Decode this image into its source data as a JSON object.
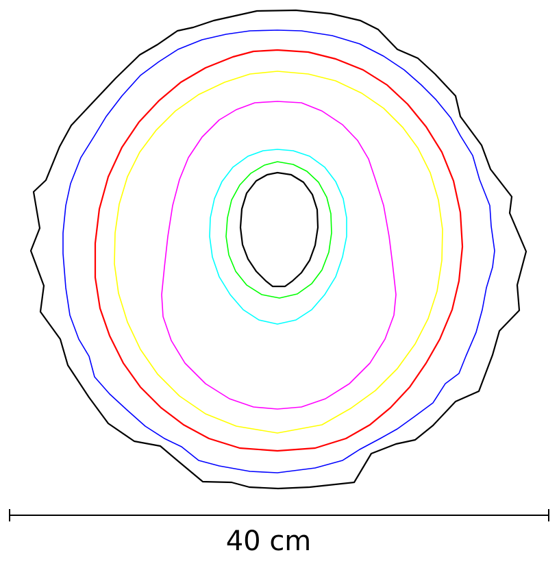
{
  "scale_bar": {
    "label": "40 cm",
    "length_cm": 40
  },
  "contours": [
    {
      "name": "outer-black",
      "color": "#000000"
    },
    {
      "name": "blue",
      "color": "#0000ff"
    },
    {
      "name": "red",
      "color": "#ff0000"
    },
    {
      "name": "yellow",
      "color": "#ffff00"
    },
    {
      "name": "magenta",
      "color": "#ff00ff"
    },
    {
      "name": "cyan",
      "color": "#00ffff"
    },
    {
      "name": "green",
      "color": "#00ff00"
    },
    {
      "name": "inner-black",
      "color": "#000000"
    }
  ]
}
